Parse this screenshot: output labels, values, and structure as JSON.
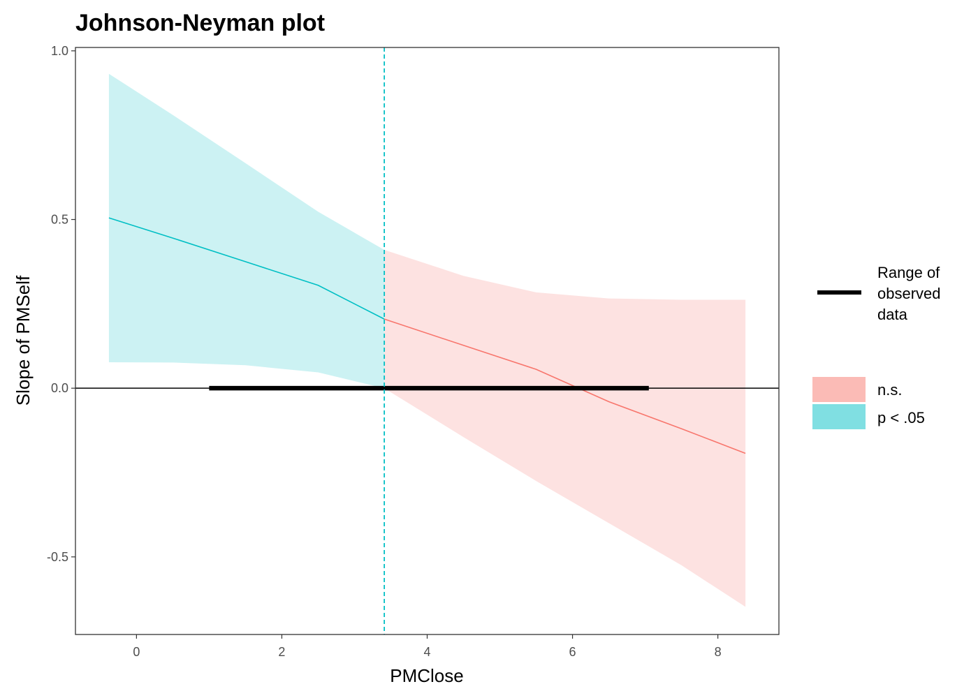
{
  "chart_data": {
    "type": "line",
    "title": "Johnson-Neyman plot",
    "xlabel": "PMClose",
    "ylabel": "Slope of PMSelf",
    "xlim": [
      -0.84,
      8.84
    ],
    "ylim": [
      -0.73,
      1.01
    ],
    "x_ticks": [
      0,
      2,
      4,
      6,
      8
    ],
    "x_tick_labels": [
      "0",
      "2",
      "4",
      "6",
      "8"
    ],
    "y_ticks": [
      -0.5,
      0.0,
      0.5,
      1.0
    ],
    "y_tick_labels": [
      "-0.5",
      "0.0",
      "0.5",
      "1.0"
    ],
    "jn_threshold": 3.41,
    "reference_line_y": 0,
    "observed_range": [
      1.0,
      7.05
    ],
    "colors": {
      "ns_line": "#F8766D",
      "ns_band": "#FDE2E1",
      "sig_line": "#00BFC4",
      "sig_band": "#CCF2F3",
      "ns_legend": "#FBBBB6",
      "sig_legend": "#80DFE2",
      "observed": "#000000"
    },
    "series": [
      {
        "name": "p < .05",
        "x": [
          -0.38,
          0.5,
          1.5,
          2.5,
          3.41
        ],
        "y": [
          0.505,
          0.445,
          0.375,
          0.305,
          0.205
        ],
        "lower": [
          0.077,
          0.076,
          0.068,
          0.047,
          0.0
        ],
        "upper": [
          0.932,
          0.81,
          0.667,
          0.523,
          0.41
        ]
      },
      {
        "name": "n.s.",
        "x": [
          3.41,
          4.5,
          5.5,
          6.5,
          7.5,
          8.38
        ],
        "y": [
          0.205,
          0.127,
          0.056,
          -0.04,
          -0.12,
          -0.193
        ],
        "lower": [
          0.0,
          -0.145,
          -0.275,
          -0.4,
          -0.525,
          -0.648
        ],
        "upper": [
          0.41,
          0.333,
          0.284,
          0.266,
          0.262,
          0.262
        ]
      }
    ],
    "legend": {
      "range_label": [
        "Range of",
        "observed",
        "data"
      ],
      "ns_label": "n.s.",
      "sig_label": "p < .05"
    }
  }
}
